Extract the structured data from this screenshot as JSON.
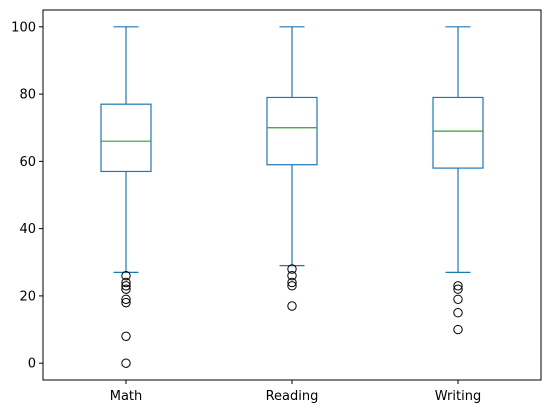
{
  "chart_data": {
    "type": "boxplot",
    "title": "",
    "xlabel": "",
    "ylabel": "",
    "ylim": [
      -5,
      105
    ],
    "yticks": [
      0,
      20,
      40,
      60,
      80,
      100
    ],
    "grid": false,
    "categories": [
      "Math",
      "Reading",
      "Writing"
    ],
    "series": [
      {
        "category": "Math",
        "whisker_low": 27,
        "q1": 57,
        "median": 66,
        "q3": 77,
        "whisker_high": 100,
        "outliers": [
          26,
          24,
          23,
          22,
          19,
          18,
          8,
          0
        ]
      },
      {
        "category": "Reading",
        "whisker_low": 29,
        "q1": 59,
        "median": 70,
        "q3": 79,
        "whisker_high": 100,
        "outliers": [
          28,
          26,
          24,
          23,
          17
        ]
      },
      {
        "category": "Writing",
        "whisker_low": 27,
        "q1": 58,
        "median": 69,
        "q3": 79,
        "whisker_high": 100,
        "outliers": [
          23,
          22,
          19,
          15,
          10
        ]
      }
    ],
    "colors": {
      "box": "#1f77b4",
      "median": "#2ca02c",
      "outlier": "#000000",
      "axis": "#000000"
    }
  }
}
